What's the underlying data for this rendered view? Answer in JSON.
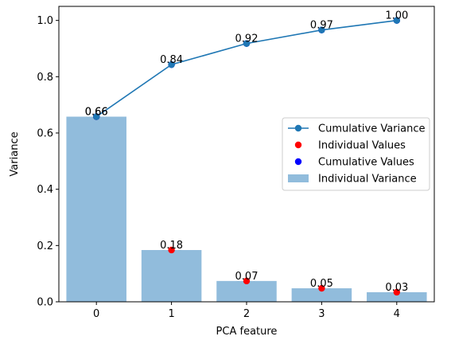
{
  "chart_data": {
    "type": "bar",
    "categories": [
      "0",
      "1",
      "2",
      "3",
      "4"
    ],
    "x": [
      0,
      1,
      2,
      3,
      4
    ],
    "xlabel": "PCA feature",
    "ylabel": "Variance",
    "xlim": [
      -0.5,
      4.5
    ],
    "ylim": [
      0,
      1.05
    ],
    "yticks": [
      0.0,
      0.2,
      0.4,
      0.6,
      0.8,
      1.0
    ],
    "ytick_labels": [
      "0.0",
      "0.2",
      "0.4",
      "0.6",
      "0.8",
      "1.0"
    ],
    "grid": false,
    "legend_position": "center-right",
    "series": [
      {
        "name": "Individual Variance",
        "kind": "bar",
        "color": "#91bcdc",
        "values": [
          0.658,
          0.184,
          0.074,
          0.048,
          0.034
        ],
        "labels": [
          "0.66",
          "0.18",
          "0.07",
          "0.05",
          "0.03"
        ]
      },
      {
        "name": "Cumulative Variance",
        "kind": "line",
        "color": "#1f77b4",
        "values": [
          0.658,
          0.843,
          0.918,
          0.966,
          1.0
        ],
        "labels": [
          "0.66",
          "0.84",
          "0.92",
          "0.97",
          "1.00"
        ]
      },
      {
        "name": "Individual Values",
        "kind": "scatter",
        "color": "#ff0000",
        "values": [
          0.658,
          0.184,
          0.074,
          0.048,
          0.034
        ]
      },
      {
        "name": "Cumulative Values",
        "kind": "scatter",
        "color": "#0000ff",
        "values": [
          0.658,
          0.843,
          0.918,
          0.966,
          1.0
        ]
      }
    ],
    "legend_order": [
      "Cumulative Variance",
      "Individual Values",
      "Cumulative Values",
      "Individual Variance"
    ]
  }
}
